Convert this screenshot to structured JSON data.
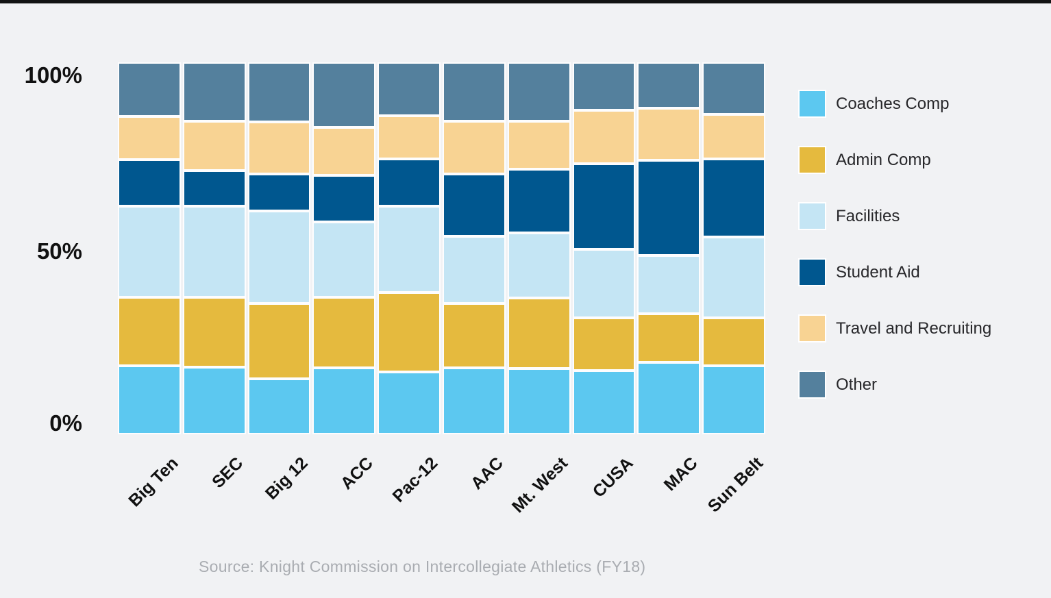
{
  "chart_data": {
    "type": "bar",
    "variant": "100-percent-stacked-column",
    "categories": [
      "Big Ten",
      "SEC",
      "Big 12",
      "ACC",
      "Pac-12",
      "AAC",
      "Mt. West",
      "CUSA",
      "MAC",
      "Sun Belt"
    ],
    "series": [
      {
        "name": "Coaches Comp",
        "color": "#5cc8f0",
        "values": [
          18.4,
          18.0,
          14.9,
          17.9,
          16.7,
          17.9,
          17.7,
          17.1,
          19.4,
          18.5
        ]
      },
      {
        "name": "Admin Comp",
        "color": "#e5ba3e",
        "values": [
          18.4,
          18.9,
          20.2,
          18.9,
          21.4,
          17.2,
          19.0,
          14.2,
          13.0,
          12.8
        ]
      },
      {
        "name": "Facilities",
        "color": "#c4e5f4",
        "values": [
          24.6,
          24.5,
          25.0,
          20.3,
          23.3,
          18.2,
          17.5,
          18.5,
          15.6,
          21.7
        ]
      },
      {
        "name": "Student Aid",
        "color": "#00578f",
        "values": [
          12.5,
          9.5,
          9.8,
          12.6,
          12.6,
          16.6,
          17.1,
          23.0,
          25.7,
          21.1
        ]
      },
      {
        "name": "Travel and Recruiting",
        "color": "#f8d393",
        "values": [
          11.6,
          13.3,
          14.1,
          12.8,
          11.6,
          14.3,
          12.9,
          14.3,
          14.0,
          11.9
        ]
      },
      {
        "name": "Other",
        "color": "#54809d",
        "values": [
          14.5,
          15.8,
          16.0,
          17.5,
          14.4,
          15.8,
          15.8,
          12.9,
          12.3,
          14.0
        ]
      }
    ],
    "stack_order_note": "Coaches Comp at bottom, Other at top",
    "ylim": [
      0,
      100
    ],
    "yticks": [
      "100%",
      "50%",
      "0%"
    ],
    "grid": "off",
    "legend_position": "right",
    "title": "",
    "xlabel": "",
    "ylabel": "",
    "source": "Source: Knight Commission on Intercollegiate Athletics (FY18)"
  },
  "page": {
    "background_color": "#f1f2f4",
    "topbar_color": "#131313"
  }
}
